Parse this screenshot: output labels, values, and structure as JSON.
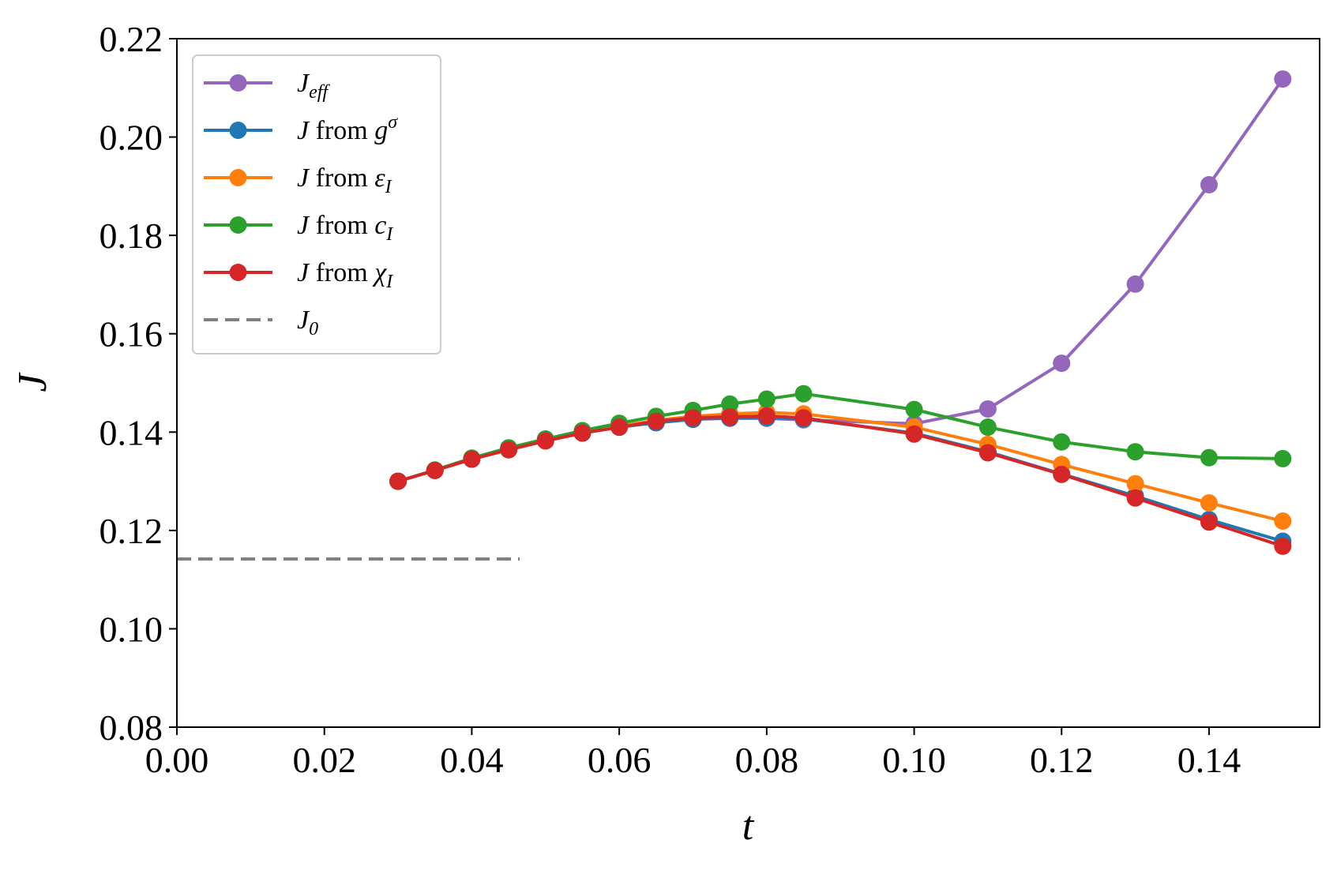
{
  "chart_data": {
    "type": "line",
    "title": "",
    "xlabel": "t",
    "ylabel": "J",
    "xlim": [
      0.0,
      0.155
    ],
    "ylim": [
      0.08,
      0.22
    ],
    "xticks": [
      0.0,
      0.02,
      0.04,
      0.06,
      0.08,
      0.1,
      0.12,
      0.14
    ],
    "xtick_labels": [
      "0.00",
      "0.02",
      "0.04",
      "0.06",
      "0.08",
      "0.10",
      "0.12",
      "0.14"
    ],
    "yticks": [
      0.08,
      0.1,
      0.12,
      0.14,
      0.16,
      0.18,
      0.2,
      0.22
    ],
    "ytick_labels": [
      "0.08",
      "0.10",
      "0.12",
      "0.14",
      "0.16",
      "0.18",
      "0.20",
      "0.22"
    ],
    "grid": false,
    "legend_position": "top-left",
    "x": [
      0.03,
      0.035,
      0.04,
      0.045,
      0.05,
      0.055,
      0.06,
      0.065,
      0.07,
      0.075,
      0.08,
      0.085,
      0.1,
      0.11,
      0.12,
      0.13,
      0.14,
      0.15
    ],
    "series": [
      {
        "name": "J_eff",
        "legend": {
          "main": "J",
          "sub": "eff",
          "sup": "",
          "prefix": ""
        },
        "color": "#9467bd",
        "style": "line-marker",
        "values": [
          0.13,
          0.1322,
          0.1345,
          0.1365,
          0.1383,
          0.1398,
          0.141,
          0.142,
          0.1426,
          0.1428,
          0.1428,
          0.1425,
          0.1417,
          0.1447,
          0.154,
          0.1701,
          0.1903,
          0.2118
        ]
      },
      {
        "name": "J from g^sigma",
        "legend": {
          "main": "J",
          "prefix": " from ",
          "var": "g",
          "sup": "σ",
          "sub": ""
        },
        "color": "#1f77b4",
        "style": "line-marker",
        "values": [
          0.13,
          0.1322,
          0.1345,
          0.1365,
          0.1383,
          0.1398,
          0.141,
          0.1419,
          0.1426,
          0.1429,
          0.143,
          0.1427,
          0.1398,
          0.136,
          0.1315,
          0.127,
          0.1222,
          0.1178
        ]
      },
      {
        "name": "J from epsilon_I",
        "legend": {
          "main": "J",
          "prefix": " from ",
          "var": "ε",
          "sub": "I",
          "sup": ""
        },
        "color": "#ff7f0e",
        "style": "line-marker",
        "values": [
          0.13,
          0.1322,
          0.1345,
          0.1365,
          0.1383,
          0.1399,
          0.1412,
          0.1424,
          0.1432,
          0.1437,
          0.144,
          0.1437,
          0.141,
          0.1375,
          0.1334,
          0.1295,
          0.1256,
          0.1219
        ]
      },
      {
        "name": "J from c_I",
        "legend": {
          "main": "J",
          "prefix": " from ",
          "var": "c",
          "sub": "I",
          "sup": ""
        },
        "color": "#2ca02c",
        "style": "line-marker",
        "values": [
          0.13,
          0.1323,
          0.1347,
          0.1368,
          0.1386,
          0.1403,
          0.1418,
          0.1432,
          0.1444,
          0.1457,
          0.1467,
          0.1478,
          0.1446,
          0.141,
          0.138,
          0.136,
          0.1348,
          0.1346
        ]
      },
      {
        "name": "J from chi_I",
        "legend": {
          "main": "J",
          "prefix": " from ",
          "var": "χ",
          "sub": "I",
          "sup": ""
        },
        "color": "#d62728",
        "style": "line-marker",
        "values": [
          0.13,
          0.1322,
          0.1345,
          0.1364,
          0.1382,
          0.1398,
          0.141,
          0.1422,
          0.1429,
          0.1431,
          0.1433,
          0.1429,
          0.1396,
          0.1358,
          0.1314,
          0.1266,
          0.1217,
          0.1168
        ]
      },
      {
        "name": "J_0",
        "legend": {
          "main": "J",
          "sub": "0",
          "sup": "",
          "prefix": ""
        },
        "color": "#7f7f7f",
        "style": "dashed",
        "x": [
          0.0,
          0.0465
        ],
        "values": [
          0.1142,
          0.1142
        ]
      }
    ]
  }
}
